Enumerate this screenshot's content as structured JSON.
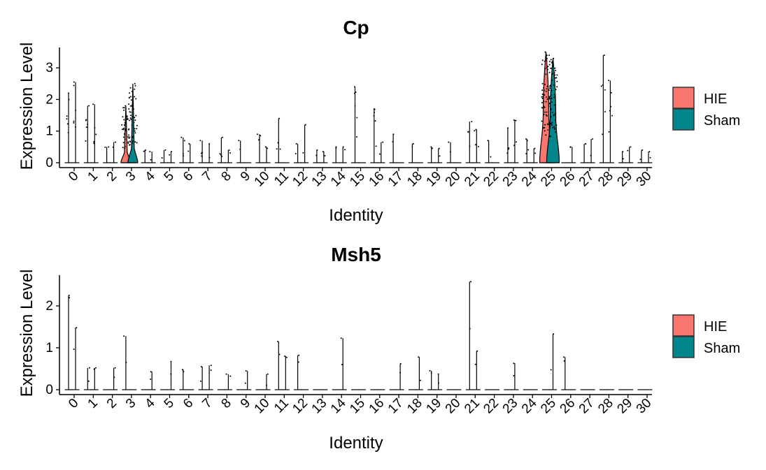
{
  "chart_data": [
    {
      "type": "violin",
      "title": "Cp",
      "xlabel": "Identity",
      "ylabel": "Expression Level",
      "ylim": [
        0,
        3.6
      ],
      "yticks": [
        0,
        1,
        2,
        3
      ],
      "categories": [
        "0",
        "1",
        "2",
        "3",
        "4",
        "5",
        "6",
        "7",
        "8",
        "9",
        "10",
        "11",
        "12",
        "13",
        "14",
        "15",
        "16",
        "17",
        "18",
        "19",
        "20",
        "21",
        "22",
        "23",
        "24",
        "25",
        "26",
        "27",
        "28",
        "29",
        "30"
      ],
      "legend": {
        "position": "right",
        "entries": [
          {
            "name": "HIE",
            "color": "#F8766D"
          },
          {
            "name": "Sham",
            "color": "#00868B"
          }
        ]
      },
      "series": [
        {
          "name": "HIE",
          "color": "#F8766D",
          "max": [
            2.2,
            1.8,
            0.5,
            1.8,
            0.4,
            0.4,
            0.8,
            0.7,
            0.8,
            0.7,
            0.9,
            1.4,
            0.6,
            0.4,
            0.5,
            2.4,
            1.7,
            0.9,
            0.6,
            0.5,
            0.65,
            1.3,
            0.7,
            1.1,
            0.75,
            3.5,
            0.0,
            0.6,
            3.4,
            0.35,
            0.4
          ],
          "density": [
            0.05,
            0.05,
            0.02,
            0.35,
            0.02,
            0.02,
            0.03,
            0.03,
            0.03,
            0.02,
            0.03,
            0.03,
            0.02,
            0.02,
            0.02,
            0.05,
            0.05,
            0.02,
            0.02,
            0.02,
            0.02,
            0.03,
            0.02,
            0.03,
            0.03,
            0.5,
            0.0,
            0.02,
            0.05,
            0.02,
            0.02
          ],
          "filled": [
            false,
            false,
            false,
            true,
            false,
            false,
            false,
            false,
            false,
            false,
            false,
            false,
            false,
            false,
            false,
            false,
            false,
            false,
            false,
            false,
            false,
            false,
            false,
            false,
            false,
            true,
            false,
            false,
            false,
            false,
            false
          ]
        },
        {
          "name": "Sham",
          "color": "#00868B",
          "max": [
            2.55,
            1.85,
            0.65,
            2.5,
            0.35,
            0.35,
            0.6,
            0.6,
            0.4,
            0.0,
            0.5,
            0.0,
            1.2,
            0.35,
            0.5,
            0.0,
            0.65,
            0.0,
            0.0,
            0.45,
            0.0,
            1.05,
            0.0,
            1.35,
            0.45,
            3.3,
            0.5,
            0.75,
            2.6,
            0.5,
            0.35
          ],
          "density": [
            0.05,
            0.05,
            0.02,
            0.35,
            0.02,
            0.02,
            0.02,
            0.02,
            0.02,
            0.0,
            0.02,
            0.0,
            0.02,
            0.02,
            0.02,
            0.0,
            0.02,
            0.0,
            0.0,
            0.02,
            0.0,
            0.03,
            0.0,
            0.03,
            0.02,
            0.5,
            0.02,
            0.02,
            0.05,
            0.02,
            0.02
          ],
          "filled": [
            false,
            false,
            false,
            true,
            false,
            false,
            false,
            false,
            false,
            false,
            false,
            false,
            false,
            false,
            false,
            false,
            false,
            false,
            false,
            false,
            false,
            false,
            false,
            false,
            false,
            true,
            false,
            false,
            false,
            false,
            false
          ]
        }
      ]
    },
    {
      "type": "violin",
      "title": "Msh5",
      "xlabel": "Identity",
      "ylabel": "Expression Level",
      "ylim": [
        0,
        2.7
      ],
      "yticks": [
        0,
        1,
        2
      ],
      "categories": [
        "0",
        "1",
        "2",
        "3",
        "4",
        "5",
        "6",
        "7",
        "8",
        "9",
        "10",
        "11",
        "12",
        "13",
        "14",
        "15",
        "16",
        "17",
        "18",
        "19",
        "20",
        "21",
        "22",
        "23",
        "24",
        "25",
        "26",
        "27",
        "28",
        "29",
        "30"
      ],
      "legend": {
        "position": "right",
        "entries": [
          {
            "name": "HIE",
            "color": "#F8766D"
          },
          {
            "name": "Sham",
            "color": "#00868B"
          }
        ]
      },
      "series": [
        {
          "name": "HIE",
          "color": "#F8766D",
          "max": [
            2.25,
            0.52,
            0.0,
            1.28,
            0.0,
            0.0,
            0.48,
            0.55,
            0.0,
            0.0,
            0.0,
            1.15,
            0.82,
            0.0,
            0.0,
            0.0,
            0.0,
            0.0,
            0.0,
            0.45,
            0.0,
            2.58,
            0.0,
            0.0,
            0.0,
            0.0,
            0.78,
            0.0,
            0.0,
            0.0,
            0.0
          ]
        },
        {
          "name": "Sham",
          "color": "#00868B",
          "max": [
            1.48,
            0.52,
            0.52,
            0.0,
            0.43,
            0.67,
            0.0,
            0.58,
            0.37,
            0.45,
            0.37,
            0.8,
            0.0,
            0.0,
            1.23,
            0.0,
            0.0,
            0.62,
            0.78,
            0.37,
            0.0,
            0.92,
            0.0,
            0.63,
            0.0,
            1.33,
            0.0,
            0.0,
            0.0,
            0.0,
            0.0
          ]
        }
      ]
    }
  ]
}
